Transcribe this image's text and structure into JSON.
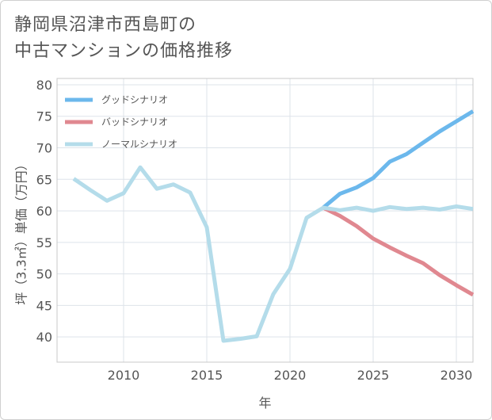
{
  "title": {
    "line1": "静岡県沼津市西島町の",
    "line2": "中古マンションの価格推移"
  },
  "chart_data": {
    "type": "line",
    "xlabel": "年",
    "ylabel": "坪（3.3㎡）単価（万円）",
    "xlim": [
      2006,
      2031
    ],
    "ylim": [
      36,
      81
    ],
    "xticks": [
      2010,
      2015,
      2020,
      2025,
      2030
    ],
    "yticks": [
      40,
      45,
      50,
      55,
      60,
      65,
      70,
      75,
      80
    ],
    "grid": true,
    "legend_position": "top-left",
    "series": [
      {
        "name": "グッドシナリオ",
        "color": "#6cb8ec",
        "x": [
          2022,
          2023,
          2024,
          2025,
          2026,
          2027,
          2028,
          2029,
          2030,
          2031
        ],
        "values": [
          60.5,
          62.7,
          63.7,
          65.2,
          67.8,
          69.0,
          70.8,
          72.6,
          74.2,
          75.8
        ]
      },
      {
        "name": "バッドシナリオ",
        "color": "#e08890",
        "x": [
          2022,
          2023,
          2024,
          2025,
          2026,
          2027,
          2028,
          2029,
          2030,
          2031
        ],
        "values": [
          60.5,
          59.2,
          57.6,
          55.6,
          54.2,
          52.9,
          51.7,
          49.8,
          48.2,
          46.7
        ]
      },
      {
        "name": "ノーマルシナリオ",
        "color": "#b4dcea",
        "x": [
          2007,
          2008,
          2009,
          2010,
          2011,
          2012,
          2013,
          2014,
          2015,
          2016,
          2017,
          2018,
          2019,
          2020,
          2021,
          2022,
          2023,
          2024,
          2025,
          2026,
          2027,
          2028,
          2029,
          2030,
          2031
        ],
        "values": [
          65.1,
          63.3,
          61.6,
          62.8,
          66.9,
          63.5,
          64.2,
          62.9,
          57.4,
          39.4,
          39.7,
          40.1,
          46.8,
          50.8,
          58.9,
          60.5,
          60.1,
          60.5,
          60.0,
          60.6,
          60.3,
          60.5,
          60.2,
          60.7,
          60.3
        ]
      }
    ]
  }
}
